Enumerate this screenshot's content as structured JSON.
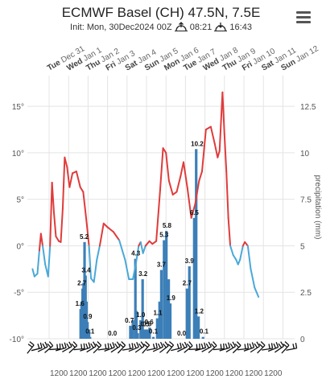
{
  "header": {
    "title": "ECMWF Basel (CH) 47.5N, 7.5E",
    "init_text": "Init: Mon, 30Dec2024 00Z",
    "sunrise": "08:21",
    "sunset": "16:43",
    "sunrise_icon": "sunrise-icon",
    "sunset_icon": "sunset-icon",
    "menu_icon": "hamburger-menu-icon"
  },
  "chart_data": {
    "type": "line+bar",
    "left_axis": {
      "ticks": [
        "15°",
        "10°",
        "5°",
        "0°",
        "-5°",
        "-10°"
      ],
      "values": [
        15,
        10,
        5,
        0,
        -5,
        -10
      ],
      "ylim": [
        -10,
        18.3
      ]
    },
    "right_axis": {
      "ticks": [
        "12.5",
        "10",
        "7.5",
        "5",
        "2.5",
        "0"
      ],
      "values": [
        12.5,
        10,
        7.5,
        5,
        2.5,
        0
      ],
      "ylim": [
        0,
        14.15
      ],
      "label": "precipitation (mm)"
    },
    "date_ticks": [
      {
        "day": "Tue",
        "date": "Dec 31",
        "t": 0
      },
      {
        "day": "Wed",
        "date": "Jan 1",
        "t": 1
      },
      {
        "day": "Thu",
        "date": "Jan 2",
        "t": 2
      },
      {
        "day": "Fri",
        "date": "Jan 3",
        "t": 3
      },
      {
        "day": "Sat",
        "date": "Jan 4",
        "t": 4
      },
      {
        "day": "Sun",
        "date": "Jan 5",
        "t": 5
      },
      {
        "day": "Mon",
        "date": "Jan 6",
        "t": 6
      },
      {
        "day": "Tue",
        "date": "Jan 7",
        "t": 7
      },
      {
        "day": "Wed",
        "date": "Jan 8",
        "t": 8
      },
      {
        "day": "Thu",
        "date": "Jan 9",
        "t": 9
      },
      {
        "day": "Fri",
        "date": "Jan 10",
        "t": 10
      },
      {
        "day": "Sat",
        "date": "Jan 11",
        "t": 11
      },
      {
        "day": "Sun",
        "date": "Jan 12",
        "t": 12
      }
    ],
    "hour_ticks": [
      "1200",
      "1200",
      "1200",
      "1200",
      "1200",
      "1200",
      "1200",
      "1200",
      "1200",
      "1200",
      "1200",
      "1200"
    ],
    "temperature_series": {
      "name": "temperature (°C)",
      "warm_color": "#e03b3b",
      "cold_color": "#4aa8d8",
      "points": [
        [
          -0.85,
          -2.5
        ],
        [
          -0.75,
          -3.3
        ],
        [
          -0.6,
          -3.0
        ],
        [
          -0.5,
          -0.5
        ],
        [
          -0.42,
          1.3
        ],
        [
          -0.33,
          0.0
        ],
        [
          -0.2,
          -2.0
        ],
        [
          -0.05,
          -3.3
        ],
        [
          0.05,
          0.0
        ],
        [
          0.15,
          6.8
        ],
        [
          0.25,
          3.5
        ],
        [
          0.35,
          1.0
        ],
        [
          0.5,
          0.5
        ],
        [
          0.6,
          0.4
        ],
        [
          0.7,
          4.0
        ],
        [
          0.8,
          9.5
        ],
        [
          0.92,
          8.5
        ],
        [
          1.05,
          6.3
        ],
        [
          1.2,
          7.8
        ],
        [
          1.4,
          8.0
        ],
        [
          1.6,
          6.3
        ],
        [
          1.75,
          5.8
        ],
        [
          1.9,
          3.0
        ],
        [
          2.05,
          0.0
        ],
        [
          2.15,
          -3.5
        ],
        [
          2.3,
          -3.9
        ],
        [
          2.45,
          -1.5
        ],
        [
          2.6,
          0.0
        ],
        [
          2.8,
          2.4
        ],
        [
          3.0,
          2.0
        ],
        [
          3.3,
          1.5
        ],
        [
          3.6,
          0.6
        ],
        [
          3.9,
          -1.5
        ],
        [
          4.1,
          -3.6
        ],
        [
          4.3,
          -3.6
        ],
        [
          4.45,
          -2.0
        ],
        [
          4.6,
          0.0
        ],
        [
          4.7,
          0.4
        ],
        [
          4.82,
          -0.8
        ],
        [
          4.95,
          0.0
        ],
        [
          5.15,
          0.5
        ],
        [
          5.3,
          0.2
        ],
        [
          5.5,
          0.5
        ],
        [
          5.7,
          6.0
        ],
        [
          5.85,
          10.5
        ],
        [
          6.0,
          10.0
        ],
        [
          6.15,
          7.0
        ],
        [
          6.35,
          5.5
        ],
        [
          6.55,
          5.8
        ],
        [
          6.75,
          7.5
        ],
        [
          6.9,
          9.0
        ],
        [
          7.1,
          6.2
        ],
        [
          7.3,
          3.0
        ],
        [
          7.5,
          4.5
        ],
        [
          7.7,
          7.0
        ],
        [
          7.85,
          8.0
        ],
        [
          8.05,
          12.5
        ],
        [
          8.3,
          12.8
        ],
        [
          8.5,
          11.0
        ],
        [
          8.65,
          9.5
        ],
        [
          8.75,
          10.2
        ],
        [
          8.9,
          16.5
        ],
        [
          9.0,
          12.0
        ],
        [
          9.1,
          8.0
        ],
        [
          9.2,
          3.0
        ],
        [
          9.3,
          0.0
        ],
        [
          9.45,
          -1.0
        ],
        [
          9.6,
          -1.5
        ],
        [
          9.7,
          -2.0
        ],
        [
          9.8,
          -1.5
        ],
        [
          9.95,
          0.0
        ],
        [
          10.05,
          0.4
        ],
        [
          10.2,
          0.0
        ],
        [
          10.35,
          -2.5
        ],
        [
          10.55,
          -4.5
        ],
        [
          10.75,
          -5.5
        ]
      ]
    },
    "precip_series": {
      "name": "precipitation (mm)",
      "color": "#3c7fb8",
      "bars": [
        [
          1.62,
          1.6
        ],
        [
          1.67,
          2.0
        ],
        [
          1.72,
          2.7
        ],
        [
          1.77,
          3.0
        ],
        [
          1.82,
          5.2
        ],
        [
          1.87,
          3.4
        ],
        [
          1.92,
          2.0
        ],
        [
          1.97,
          0.9
        ],
        [
          2.05,
          0.5
        ],
        [
          2.1,
          0.1
        ],
        [
          3.25,
          0.0
        ],
        [
          4.17,
          0.7
        ],
        [
          4.3,
          1.0
        ],
        [
          4.43,
          4.3
        ],
        [
          4.48,
          1.5
        ],
        [
          4.55,
          0.3
        ],
        [
          4.7,
          1.0
        ],
        [
          4.8,
          3.2
        ],
        [
          4.92,
          0.5
        ],
        [
          5.04,
          0.5
        ],
        [
          5.16,
          0.6
        ],
        [
          5.35,
          0.1
        ],
        [
          5.55,
          1.1
        ],
        [
          5.67,
          2.0
        ],
        [
          5.76,
          3.7
        ],
        [
          5.9,
          5.3
        ],
        [
          6.02,
          5.8
        ],
        [
          6.14,
          3.2
        ],
        [
          6.22,
          1.9
        ],
        [
          6.8,
          0.0
        ],
        [
          7.08,
          2.7
        ],
        [
          7.2,
          3.9
        ],
        [
          7.45,
          6.5
        ],
        [
          7.55,
          10.2
        ],
        [
          7.67,
          1.2
        ],
        [
          7.9,
          0.1
        ]
      ],
      "labels": [
        {
          "t": 1.58,
          "v": 1.6,
          "text": "1.6"
        },
        {
          "t": 1.68,
          "v": 2.7,
          "text": "2.7"
        },
        {
          "t": 1.8,
          "v": 5.2,
          "text": "5.2"
        },
        {
          "t": 1.9,
          "v": 3.4,
          "text": "3.4"
        },
        {
          "t": 1.98,
          "v": 0.9,
          "text": "0.9"
        },
        {
          "t": 2.1,
          "v": 0.1,
          "text": "0.1"
        },
        {
          "t": 3.25,
          "v": 0.0,
          "text": "0.0"
        },
        {
          "t": 4.12,
          "v": 0.7,
          "text": "0.7"
        },
        {
          "t": 4.45,
          "v": 4.3,
          "text": "4.3"
        },
        {
          "t": 4.5,
          "v": 0.3,
          "text": "0.3"
        },
        {
          "t": 4.7,
          "v": 1.0,
          "text": "1.0"
        },
        {
          "t": 4.82,
          "v": 3.2,
          "text": "3.2"
        },
        {
          "t": 4.92,
          "v": 0.5,
          "text": "0.5"
        },
        {
          "t": 5.02,
          "v": 0.5,
          "text": "0.5"
        },
        {
          "t": 5.13,
          "v": 0.6,
          "text": "0.6"
        },
        {
          "t": 5.35,
          "v": 0.1,
          "text": "0.1"
        },
        {
          "t": 5.58,
          "v": 1.1,
          "text": "1.1"
        },
        {
          "t": 5.76,
          "v": 3.7,
          "text": "3.7"
        },
        {
          "t": 5.9,
          "v": 5.3,
          "text": "5.3"
        },
        {
          "t": 6.05,
          "v": 5.8,
          "text": "5.8"
        },
        {
          "t": 6.25,
          "v": 1.9,
          "text": "1.9"
        },
        {
          "t": 6.8,
          "v": 0.0,
          "text": "0.0"
        },
        {
          "t": 7.08,
          "v": 2.7,
          "text": "2.7"
        },
        {
          "t": 7.2,
          "v": 3.9,
          "text": "3.9"
        },
        {
          "t": 7.45,
          "v": 6.5,
          "text": "6.5"
        },
        {
          "t": 7.6,
          "v": 10.2,
          "text": "10.2"
        },
        {
          "t": 7.7,
          "v": 1.2,
          "text": "1.2"
        },
        {
          "t": 7.95,
          "v": 0.1,
          "text": "0.1"
        }
      ]
    },
    "wind_barbs": {
      "name": "wind barbs",
      "count": 44
    },
    "grid": true
  }
}
